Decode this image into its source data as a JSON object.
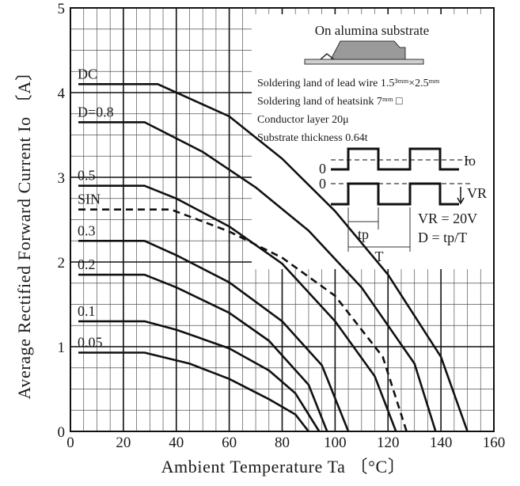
{
  "chart_data": {
    "type": "line",
    "xlabel": "Ambient Temperature  Ta 〔°C〕",
    "ylabel": "Average Rectified Forward Current  Io 〔A〕",
    "xlim": [
      0,
      160
    ],
    "ylim": [
      0,
      5
    ],
    "x_ticks": [
      "0",
      "20",
      "40",
      "60",
      "80",
      "100",
      "120",
      "140",
      "160"
    ],
    "y_ticks": [
      "0",
      "1",
      "2",
      "3",
      "4",
      "5"
    ],
    "grid": true,
    "series": [
      {
        "name": "DC",
        "style": "solid",
        "x": [
          3,
          33,
          60,
          80,
          100,
          120,
          140,
          150
        ],
        "y": [
          4.1,
          4.1,
          3.72,
          3.22,
          2.6,
          1.85,
          0.88,
          0
        ]
      },
      {
        "name": "D=0.8",
        "style": "solid",
        "x": [
          3,
          28,
          50,
          70,
          90,
          110,
          130,
          138
        ],
        "y": [
          3.65,
          3.65,
          3.3,
          2.88,
          2.37,
          1.7,
          0.8,
          0
        ]
      },
      {
        "name": "0.5",
        "style": "solid",
        "x": [
          3,
          28,
          40,
          60,
          80,
          100,
          115,
          123
        ],
        "y": [
          2.9,
          2.9,
          2.75,
          2.42,
          1.98,
          1.3,
          0.65,
          0
        ]
      },
      {
        "name": "SIN",
        "style": "dashed",
        "x": [
          3,
          38,
          60,
          80,
          100,
          118,
          127
        ],
        "y": [
          2.62,
          2.62,
          2.36,
          2.05,
          1.6,
          0.88,
          0
        ]
      },
      {
        "name": "0.3",
        "style": "solid",
        "x": [
          3,
          28,
          40,
          60,
          80,
          95,
          105
        ],
        "y": [
          2.25,
          2.25,
          2.08,
          1.76,
          1.3,
          0.78,
          0
        ]
      },
      {
        "name": "0.2",
        "style": "solid",
        "x": [
          3,
          28,
          40,
          60,
          75,
          90,
          97
        ],
        "y": [
          1.85,
          1.85,
          1.7,
          1.4,
          1.07,
          0.55,
          0
        ]
      },
      {
        "name": "0.1",
        "style": "solid",
        "x": [
          3,
          28,
          40,
          60,
          75,
          85,
          94
        ],
        "y": [
          1.3,
          1.3,
          1.2,
          0.98,
          0.72,
          0.45,
          0
        ]
      },
      {
        "name": "0.05",
        "style": "solid",
        "x": [
          3,
          28,
          45,
          60,
          75,
          85,
          90
        ],
        "y": [
          0.93,
          0.93,
          0.8,
          0.62,
          0.38,
          0.2,
          0
        ]
      }
    ],
    "inset": {
      "title": "On alumina substrate",
      "notes": [
        "Soldering land of lead wire  1.5³ᵐᵐ×2.5ᵐᵐ",
        "Soldering land of heatsink  7ᵐᵐ □",
        "Conductor layer 20μ",
        "Substrate thickness 0.64t"
      ],
      "wave": {
        "io_label": "Io",
        "vr_label": "VR",
        "zero1": "0",
        "zero2": "0",
        "tp_label": "tp",
        "t_label": "T",
        "vr_value": "VR = 20V",
        "d_formula": "D = tp/T"
      }
    }
  }
}
